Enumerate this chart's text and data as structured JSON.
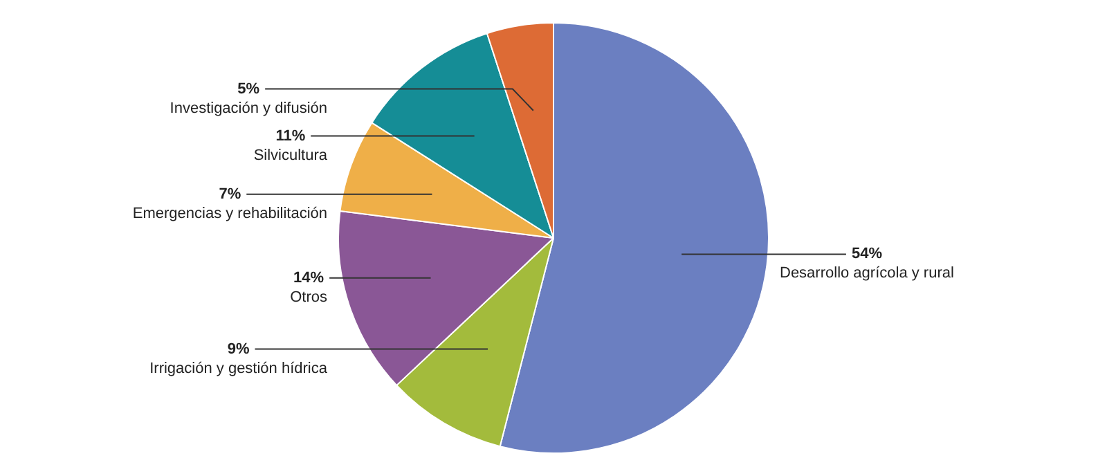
{
  "chart_data": {
    "type": "pie",
    "categories": [
      "Desarrollo agrícola y rural",
      "Irrigación y gestión hídrica",
      "Otros",
      "Emergencias y rehabilitación",
      "Silvicultura",
      "Investigación y difusión"
    ],
    "values": [
      54,
      9,
      14,
      7,
      11,
      5
    ],
    "colors": [
      "#6b7fc1",
      "#a3bb3c",
      "#8a5796",
      "#efaf48",
      "#158d96",
      "#dd6b35"
    ],
    "value_labels": [
      "54%",
      "9%",
      "14%",
      "7%",
      "11%",
      "5%"
    ]
  }
}
